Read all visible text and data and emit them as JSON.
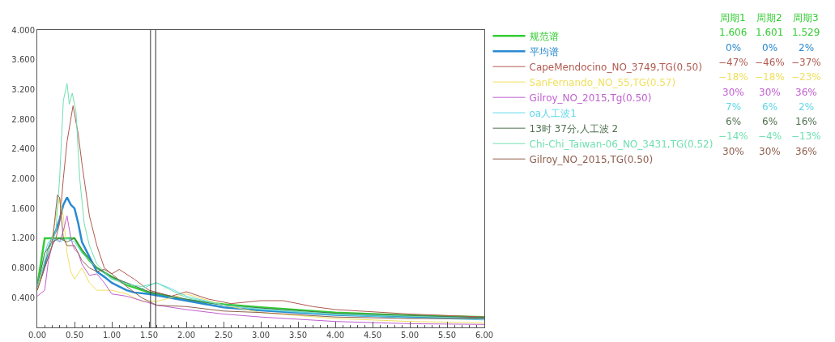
{
  "chart_data": {
    "type": "line",
    "xlim": [
      0,
      6
    ],
    "ylim": [
      0,
      4
    ],
    "xticks": [
      {
        "value": 0,
        "label": "0.00"
      },
      {
        "value": 0.5,
        "label": "0.50"
      },
      {
        "value": 1,
        "label": "1.00"
      },
      {
        "value": 1.5,
        "label": "1.50"
      },
      {
        "value": 2,
        "label": "2.00"
      },
      {
        "value": 2.5,
        "label": "2.50"
      },
      {
        "value": 3,
        "label": "3.00"
      },
      {
        "value": 3.5,
        "label": "3.50"
      },
      {
        "value": 4,
        "label": "4.00"
      },
      {
        "value": 4.5,
        "label": "4.50"
      },
      {
        "value": 5,
        "label": "5.00"
      },
      {
        "value": 5.5,
        "label": "5.50"
      },
      {
        "value": 6,
        "label": "6.00"
      }
    ],
    "yticks": [
      {
        "value": 0.4,
        "label": "0.400"
      },
      {
        "value": 0.8,
        "label": "0.800"
      },
      {
        "value": 1.2,
        "label": "1.200"
      },
      {
        "value": 1.6,
        "label": "1.600"
      },
      {
        "value": 2,
        "label": "2.000"
      },
      {
        "value": 2.4,
        "label": "2.400"
      },
      {
        "value": 2.8,
        "label": "2.800"
      },
      {
        "value": 3.2,
        "label": "3.200"
      },
      {
        "value": 3.6,
        "label": "3.600"
      },
      {
        "value": 4,
        "label": "4.000"
      }
    ],
    "grid": false,
    "legend": "right",
    "marker": "none",
    "line_style": "solid",
    "ref_lines": [
      {
        "axis": "x",
        "value": 1.52,
        "color": "#333333"
      },
      {
        "axis": "x",
        "value": 1.59,
        "color": "#333333"
      }
    ],
    "annotations": [
      "周期1",
      "周期2",
      "周期3",
      "1.606",
      "1.601",
      "1.529",
      "0%",
      "0%",
      "2%",
      "−47%",
      "−46%",
      "−37%",
      "−18%",
      "−18%",
      "−23%",
      "30%",
      "30%",
      "36%",
      "7%",
      "6%",
      "2%",
      "6%",
      "6%",
      "16%",
      "−14%",
      "−4%",
      "−13%",
      "30%",
      "30%",
      "36%"
    ],
    "series": [
      {
        "name": "规范谱",
        "color": "#33cc33",
        "x": [
          0,
          0.1,
          0.2,
          0.3,
          0.4,
          0.5,
          0.6,
          0.7,
          0.8,
          1.0,
          1.2,
          1.5,
          2.0,
          2.5,
          3.0,
          4.0,
          5.0,
          6.0
        ],
        "values": [
          0.55,
          1.2,
          1.2,
          1.2,
          1.2,
          1.2,
          1.03,
          0.9,
          0.8,
          0.68,
          0.57,
          0.47,
          0.37,
          0.31,
          0.27,
          0.2,
          0.16,
          0.14
        ]
      },
      {
        "name": "平均谱",
        "color": "#2a8ad0",
        "x": [
          0,
          0.1,
          0.15,
          0.2,
          0.25,
          0.3,
          0.35,
          0.4,
          0.45,
          0.5,
          0.55,
          0.6,
          0.7,
          0.8,
          0.9,
          1.0,
          1.1,
          1.2,
          1.3,
          1.5,
          2.0,
          2.5,
          3.0,
          4.0,
          5.0,
          6.0
        ],
        "values": [
          0.55,
          0.85,
          1.05,
          1.2,
          1.3,
          1.45,
          1.65,
          1.75,
          1.65,
          1.6,
          1.4,
          1.15,
          0.95,
          0.75,
          0.68,
          0.6,
          0.55,
          0.5,
          0.47,
          0.45,
          0.36,
          0.27,
          0.23,
          0.17,
          0.14,
          0.12
        ]
      },
      {
        "name": "CapeMendocino_NO_3749,TG(0.50)",
        "color": "#b05a50",
        "x": [
          0,
          0.1,
          0.2,
          0.25,
          0.3,
          0.35,
          0.4,
          0.48,
          0.55,
          0.6,
          0.7,
          0.8,
          0.9,
          1.0,
          1.1,
          1.3,
          1.5,
          1.8,
          2.0,
          2.3,
          2.6,
          3.0,
          3.3,
          3.7,
          4.0,
          5.0,
          6.0
        ],
        "values": [
          0.5,
          0.8,
          1.1,
          1.2,
          1.4,
          2.0,
          2.5,
          2.98,
          2.6,
          2.2,
          1.5,
          1.1,
          0.8,
          0.72,
          0.78,
          0.65,
          0.5,
          0.42,
          0.48,
          0.38,
          0.32,
          0.36,
          0.36,
          0.28,
          0.24,
          0.18,
          0.14
        ]
      },
      {
        "name": "SanFernando_NO_55,TG(0.57)",
        "color": "#f0e060",
        "x": [
          0,
          0.1,
          0.2,
          0.25,
          0.3,
          0.35,
          0.4,
          0.45,
          0.5,
          0.6,
          0.7,
          0.8,
          1.0,
          1.2,
          1.4,
          1.6,
          2.0,
          2.5,
          3.0,
          4.0,
          5.0,
          6.0
        ],
        "values": [
          0.5,
          0.9,
          1.2,
          1.5,
          1.75,
          1.5,
          1.0,
          0.75,
          0.65,
          0.8,
          0.6,
          0.5,
          0.5,
          0.45,
          0.35,
          0.35,
          0.45,
          0.3,
          0.2,
          0.12,
          0.08,
          0.06
        ]
      },
      {
        "name": "Gilroy_NO_2015,Tg(0.50)",
        "color": "#c060d0",
        "x": [
          0,
          0.1,
          0.15,
          0.2,
          0.25,
          0.3,
          0.35,
          0.4,
          0.45,
          0.5,
          0.55,
          0.6,
          0.7,
          0.8,
          0.9,
          1.0,
          1.2,
          1.4,
          1.6,
          2.0,
          2.5,
          3.0,
          4.0,
          5.0,
          6.0
        ],
        "values": [
          0.42,
          0.5,
          0.9,
          1.1,
          1.2,
          1.15,
          1.3,
          1.5,
          1.2,
          1.05,
          1.0,
          0.85,
          0.7,
          0.72,
          0.6,
          0.45,
          0.42,
          0.36,
          0.3,
          0.24,
          0.18,
          0.14,
          0.08,
          0.05,
          0.04
        ]
      },
      {
        "name": "oa人工波1",
        "color": "#60d8e8",
        "x": [
          0,
          0.1,
          0.15,
          0.2,
          0.3,
          0.4,
          0.5,
          0.6,
          0.7,
          0.8,
          1.0,
          1.2,
          1.4,
          1.6,
          1.8,
          2.0,
          2.5,
          3.0,
          4.0,
          5.0,
          6.0
        ],
        "values": [
          0.55,
          1.0,
          1.15,
          1.2,
          1.15,
          1.2,
          1.15,
          1.0,
          0.9,
          0.8,
          0.65,
          0.6,
          0.52,
          0.6,
          0.52,
          0.42,
          0.3,
          0.24,
          0.17,
          0.13,
          0.1
        ]
      },
      {
        "name": "13时 37分,人工波 2",
        "color": "#507050",
        "x": [
          0,
          0.1,
          0.2,
          0.3,
          0.4,
          0.5,
          0.6,
          0.8,
          1.0,
          1.2,
          1.5,
          2.0,
          2.5,
          3.0,
          4.0,
          5.0,
          6.0
        ],
        "values": [
          0.55,
          1.0,
          1.15,
          1.2,
          1.15,
          1.2,
          1.05,
          0.8,
          0.68,
          0.6,
          0.48,
          0.38,
          0.3,
          0.26,
          0.19,
          0.16,
          0.13
        ]
      },
      {
        "name": "Chi-Chi_Taiwan-06_NO_3431,TG(0.52)",
        "color": "#70e0b0",
        "x": [
          0,
          0.1,
          0.2,
          0.25,
          0.3,
          0.35,
          0.4,
          0.43,
          0.47,
          0.52,
          0.57,
          0.63,
          0.7,
          0.8,
          1.0,
          1.2,
          1.4,
          1.6,
          1.8,
          2.0,
          2.5,
          3.0,
          4.0,
          5.0,
          6.0
        ],
        "values": [
          0.55,
          0.9,
          1.15,
          1.3,
          2.0,
          3.05,
          3.28,
          3.0,
          3.15,
          2.9,
          2.0,
          1.4,
          1.1,
          0.85,
          0.65,
          0.58,
          0.55,
          0.6,
          0.5,
          0.4,
          0.3,
          0.25,
          0.18,
          0.15,
          0.12
        ]
      },
      {
        "name": "Gilroy_NO_2015,TG(0.50)",
        "color": "#906050",
        "x": [
          0,
          0.1,
          0.2,
          0.27,
          0.3,
          0.35,
          0.4,
          0.5,
          0.6,
          0.7,
          0.8,
          0.9,
          1.0,
          1.2,
          1.4,
          1.6,
          2.0,
          2.5,
          3.0,
          4.0,
          5.0,
          6.0
        ],
        "values": [
          0.5,
          0.8,
          1.1,
          1.78,
          1.75,
          1.2,
          1.1,
          1.1,
          0.9,
          0.8,
          0.75,
          0.78,
          0.72,
          0.55,
          0.4,
          0.3,
          0.28,
          0.22,
          0.2,
          0.14,
          0.12,
          0.12
        ]
      }
    ]
  }
}
